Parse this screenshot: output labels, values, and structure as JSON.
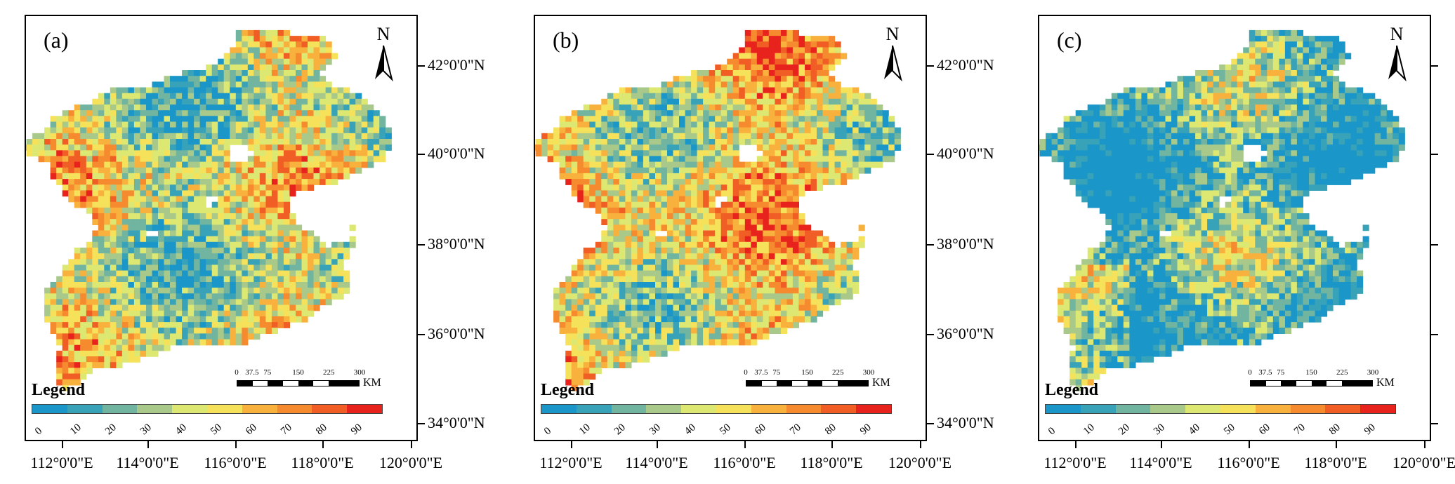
{
  "panels": [
    {
      "id": "a",
      "label": "(a)",
      "north": "N",
      "legend_title": "Legend",
      "dominance": 0.45,
      "scale": {
        "ticks": [
          "0",
          "37.5",
          "75",
          "150",
          "225",
          "300"
        ],
        "unit": "KM"
      },
      "show_lat_labels": true
    },
    {
      "id": "b",
      "label": "(b)",
      "north": "N",
      "legend_title": "Legend",
      "dominance": 0.58,
      "scale": {
        "ticks": [
          "0",
          "37.5",
          "75",
          "150",
          "225",
          "300"
        ],
        "unit": "KM"
      },
      "show_lat_labels": true
    },
    {
      "id": "c",
      "label": "(c)",
      "north": "N",
      "legend_title": "Legend",
      "dominance": 0.2,
      "scale": {
        "ticks": [
          "0",
          "37.5",
          "75",
          "150",
          "225",
          "300"
        ],
        "unit": "KM"
      },
      "show_lat_labels": false
    }
  ],
  "legend": {
    "labels": [
      "0",
      "10",
      "20",
      "30",
      "40",
      "50",
      "60",
      "70",
      "80",
      "90"
    ],
    "colors": [
      "#1a96c8",
      "#38a3b8",
      "#71b5a0",
      "#a8c98a",
      "#dde872",
      "#f5e25a",
      "#f9b13e",
      "#f68a2e",
      "#f15e25",
      "#e8221d"
    ]
  },
  "lat_labels": [
    "42°0'0\"N",
    "40°0'0\"N",
    "38°0'0\"N",
    "36°0'0\"N",
    "34°0'0\"N"
  ],
  "lon_labels": [
    "112°0'0\"E",
    "114°0'0\"E",
    "116°0'0\"E",
    "118°0'0\"E",
    "120°0'0\"E"
  ]
}
